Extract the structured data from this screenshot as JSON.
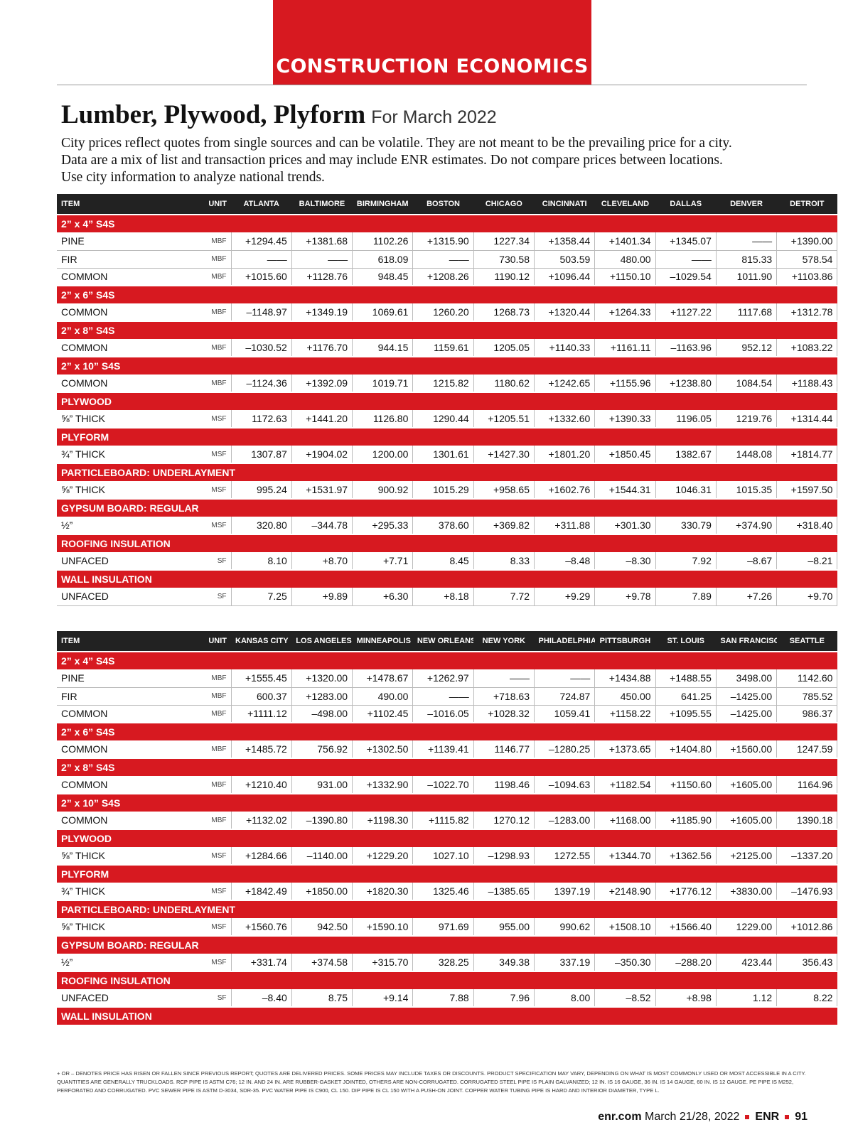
{
  "header": {
    "section": "CONSTRUCTION ECONOMICS",
    "title": "Lumber, Plywood, Plyform",
    "subtitle": "For March 2022",
    "intro": [
      "City prices reflect quotes from single sources and can be volatile. They are not meant to be the prevailing price for a city.",
      "Data are a mix of list and transaction prices and may include ENR estimates. Do not compare prices between locations.",
      "Use city information to analyze national trends."
    ]
  },
  "tables": [
    {
      "columns": [
        "ITEM",
        "UNIT",
        "ATLANTA",
        "BALTIMORE",
        "BIRMINGHAM",
        "BOSTON",
        "CHICAGO",
        "CINCINNATI",
        "CLEVELAND",
        "DALLAS",
        "DENVER",
        "DETROIT"
      ],
      "groups": [
        {
          "name": "2” x 4” S4S",
          "rows": [
            {
              "item": "PINE",
              "unit": "MBF",
              "values": [
                "+1294.45",
                "+1381.68",
                "1102.26",
                "+1315.90",
                "1227.34",
                "+1358.44",
                "+1401.34",
                "+1345.07",
                "——",
                "+1390.00"
              ]
            },
            {
              "item": "FIR",
              "unit": "MBF",
              "values": [
                "——",
                "——",
                "618.09",
                "——",
                "730.58",
                "503.59",
                "480.00",
                "——",
                "815.33",
                "578.54"
              ]
            },
            {
              "item": "COMMON",
              "unit": "MBF",
              "values": [
                "+1015.60",
                "+1128.76",
                "948.45",
                "+1208.26",
                "1190.12",
                "+1096.44",
                "+1150.10",
                "–1029.54",
                "1011.90",
                "+1103.86"
              ]
            }
          ]
        },
        {
          "name": "2” x 6” S4S",
          "rows": [
            {
              "item": "COMMON",
              "unit": "MBF",
              "values": [
                "–1148.97",
                "+1349.19",
                "1069.61",
                "1260.20",
                "1268.73",
                "+1320.44",
                "+1264.33",
                "+1127.22",
                "1117.68",
                "+1312.78"
              ]
            }
          ]
        },
        {
          "name": "2” x 8” S4S",
          "rows": [
            {
              "item": "COMMON",
              "unit": "MBF",
              "values": [
                "–1030.52",
                "+1176.70",
                "944.15",
                "1159.61",
                "1205.05",
                "+1140.33",
                "+1161.11",
                "–1163.96",
                "952.12",
                "+1083.22"
              ]
            }
          ]
        },
        {
          "name": "2” x 10” S4S",
          "rows": [
            {
              "item": "COMMON",
              "unit": "MBF",
              "values": [
                "–1124.36",
                "+1392.09",
                "1019.71",
                "1215.82",
                "1180.62",
                "+1242.65",
                "+1155.96",
                "+1238.80",
                "1084.54",
                "+1188.43"
              ]
            }
          ]
        },
        {
          "name": "PLYWOOD",
          "rows": [
            {
              "item": "⅝” THICK",
              "unit": "MSF",
              "values": [
                "1172.63",
                "+1441.20",
                "1126.80",
                "1290.44",
                "+1205.51",
                "+1332.60",
                "+1390.33",
                "1196.05",
                "1219.76",
                "+1314.44"
              ]
            }
          ]
        },
        {
          "name": "PLYFORM",
          "rows": [
            {
              "item": "¾” THICK",
              "unit": "MSF",
              "values": [
                "1307.87",
                "+1904.02",
                "1200.00",
                "1301.61",
                "+1427.30",
                "+1801.20",
                "+1850.45",
                "1382.67",
                "1448.08",
                "+1814.77"
              ]
            }
          ]
        },
        {
          "name": "PARTICLEBOARD: UNDERLAYMENT",
          "rows": [
            {
              "item": "⅝” THICK",
              "unit": "MSF",
              "values": [
                "995.24",
                "+1531.97",
                "900.92",
                "1015.29",
                "+958.65",
                "+1602.76",
                "+1544.31",
                "1046.31",
                "1015.35",
                "+1597.50"
              ]
            }
          ]
        },
        {
          "name": "GYPSUM BOARD: REGULAR",
          "rows": [
            {
              "item": "½”",
              "unit": "MSF",
              "values": [
                "320.80",
                "–344.78",
                "+295.33",
                "378.60",
                "+369.82",
                "+311.88",
                "+301.30",
                "330.79",
                "+374.90",
                "+318.40"
              ]
            }
          ]
        },
        {
          "name": "ROOFING INSULATION",
          "rows": [
            {
              "item": "UNFACED",
              "unit": "SF",
              "values": [
                "8.10",
                "+8.70",
                "+7.71",
                "8.45",
                "8.33",
                "–8.48",
                "–8.30",
                "7.92",
                "–8.67",
                "–8.21"
              ]
            }
          ]
        },
        {
          "name": "WALL INSULATION",
          "rows": [
            {
              "item": "UNFACED",
              "unit": "SF",
              "values": [
                "7.25",
                "+9.89",
                "+6.30",
                "+8.18",
                "7.72",
                "+9.29",
                "+9.78",
                "7.89",
                "+7.26",
                "+9.70"
              ]
            }
          ]
        }
      ]
    },
    {
      "columns": [
        "ITEM",
        "UNIT",
        "KANSAS CITY",
        "LOS ANGELES",
        "MINNEAPOLIS",
        "NEW ORLEANS",
        "NEW YORK",
        "PHILADELPHIA",
        "PITTSBURGH",
        "ST. LOUIS",
        "SAN FRANCISCO",
        "SEATTLE"
      ],
      "groups": [
        {
          "name": "2” x 4” S4S",
          "rows": [
            {
              "item": "PINE",
              "unit": "MBF",
              "values": [
                "+1555.45",
                "+1320.00",
                "+1478.67",
                "+1262.97",
                "——",
                "——",
                "+1434.88",
                "+1488.55",
                "3498.00",
                "1142.60"
              ]
            },
            {
              "item": "FIR",
              "unit": "MBF",
              "values": [
                "600.37",
                "+1283.00",
                "490.00",
                "——",
                "+718.63",
                "724.87",
                "450.00",
                "641.25",
                "–1425.00",
                "785.52"
              ]
            },
            {
              "item": "COMMON",
              "unit": "MBF",
              "values": [
                "+1111.12",
                "–498.00",
                "+1102.45",
                "–1016.05",
                "+1028.32",
                "1059.41",
                "+1158.22",
                "+1095.55",
                "–1425.00",
                "986.37"
              ]
            }
          ]
        },
        {
          "name": "2” x 6” S4S",
          "rows": [
            {
              "item": "COMMON",
              "unit": "MBF",
              "values": [
                "+1485.72",
                "756.92",
                "+1302.50",
                "+1139.41",
                "1146.77",
                "–1280.25",
                "+1373.65",
                "+1404.80",
                "+1560.00",
                "1247.59"
              ]
            }
          ]
        },
        {
          "name": "2” x 8” S4S",
          "rows": [
            {
              "item": "COMMON",
              "unit": "MBF",
              "values": [
                "+1210.40",
                "931.00",
                "+1332.90",
                "–1022.70",
                "1198.46",
                "–1094.63",
                "+1182.54",
                "+1150.60",
                "+1605.00",
                "1164.96"
              ]
            }
          ]
        },
        {
          "name": "2” x 10” S4S",
          "rows": [
            {
              "item": "COMMON",
              "unit": "MBF",
              "values": [
                "+1132.02",
                "–1390.80",
                "+1198.30",
                "+1115.82",
                "1270.12",
                "–1283.00",
                "+1168.00",
                "+1185.90",
                "+1605.00",
                "1390.18"
              ]
            }
          ]
        },
        {
          "name": "PLYWOOD",
          "rows": [
            {
              "item": "⅝” THICK",
              "unit": "MSF",
              "values": [
                "+1284.66",
                "–1140.00",
                "+1229.20",
                "1027.10",
                "–1298.93",
                "1272.55",
                "+1344.70",
                "+1362.56",
                "+2125.00",
                "–1337.20"
              ]
            }
          ]
        },
        {
          "name": "PLYFORM",
          "rows": [
            {
              "item": "¾” THICK",
              "unit": "MSF",
              "values": [
                "+1842.49",
                "+1850.00",
                "+1820.30",
                "1325.46",
                "–1385.65",
                "1397.19",
                "+2148.90",
                "+1776.12",
                "+3830.00",
                "–1476.93"
              ]
            }
          ]
        },
        {
          "name": "PARTICLEBOARD: UNDERLAYMENT",
          "rows": [
            {
              "item": "⅝” THICK",
              "unit": "MSF",
              "values": [
                "+1560.76",
                "942.50",
                "+1590.10",
                "971.69",
                "955.00",
                "990.62",
                "+1508.10",
                "+1566.40",
                "1229.00",
                "+1012.86"
              ]
            }
          ]
        },
        {
          "name": "GYPSUM BOARD: REGULAR",
          "rows": [
            {
              "item": "½”",
              "unit": "MSF",
              "values": [
                "+331.74",
                "+374.58",
                "+315.70",
                "328.25",
                "349.38",
                "337.19",
                "–350.30",
                "–288.20",
                "423.44",
                "356.43"
              ]
            }
          ]
        },
        {
          "name": "ROOFING INSULATION",
          "rows": [
            {
              "item": "UNFACED",
              "unit": "SF",
              "values": [
                "–8.40",
                "8.75",
                "+9.14",
                "7.88",
                "7.96",
                "8.00",
                "–8.52",
                "+8.98",
                "1.12",
                "8.22"
              ]
            }
          ]
        },
        {
          "name": "WALL INSULATION",
          "rows": []
        }
      ]
    }
  ],
  "footnote": "+ OR – DENOTES PRICE HAS RISEN OR FALLEN SINCE PREVIOUS REPORT; QUOTES ARE DELIVERED PRICES. SOME PRICES MAY INCLUDE TAXES OR DISCOUNTS. PRODUCT SPECIFICATION MAY VARY, DEPENDING ON WHAT IS MOST COMMONLY USED OR MOST ACCESSIBLE IN A CITY. QUANTITIES ARE GENERALLY TRUCKLOADS. RCP PIPE IS ASTM C76; 12 IN. AND 24 IN. ARE RUBBER-GASKET JOINTED, OTHERS ARE NON-CORRUGATED. CORRUGATED STEEL PIPE IS PLAIN GALVANIZED; 12 IN. IS 16 GAUGE, 36 IN. IS 14 GAUGE, 60 IN. IS 12 GAUGE. PE PIPE IS M252, PERFORATED AND CORRUGATED. PVC SEWER PIPE IS ASTM D-3034, SDR-35. PVC WATER PIPE IS C900, CL 150. DIP PIPE IS CL 150 WITH A PUSH-ON JOINT. COPPER WATER TUBING PIPE IS HARD AND INTERIOR DIAMETER, TYPE L.",
  "footer": {
    "site": "enr.com",
    "date": "March 21/28, 2022",
    "brand": "ENR",
    "page": "91"
  }
}
